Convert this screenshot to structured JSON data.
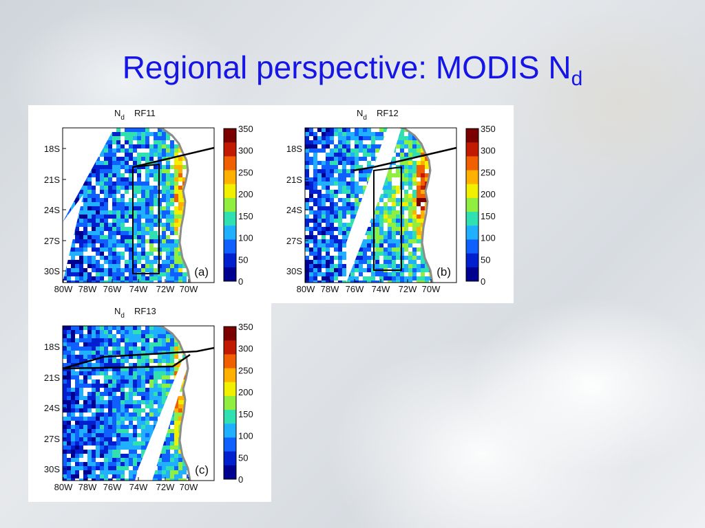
{
  "slide": {
    "title": "Regional perspective: MODIS N",
    "title_subscript": "d"
  },
  "colorbar": {
    "ticks": [
      "350",
      "300",
      "250",
      "200",
      "150",
      "100",
      "50",
      "0"
    ],
    "colors": [
      "#7a0000",
      "#c21a00",
      "#f06000",
      "#ffb000",
      "#f2f000",
      "#90ee40",
      "#30e0b0",
      "#20b0ff",
      "#1060ff",
      "#0020d0",
      "#000090"
    ]
  },
  "axes": {
    "lat_ticks": [
      "18S",
      "21S",
      "24S",
      "27S",
      "30S"
    ],
    "lon_ticks": [
      "80W",
      "78W",
      "76W",
      "74W",
      "72W",
      "70W"
    ]
  },
  "panels": [
    {
      "id": "a",
      "var": "N",
      "var_sub": "d",
      "flight": "RF11",
      "label": "(a)"
    },
    {
      "id": "b",
      "var": "N",
      "var_sub": "d",
      "flight": "RF12",
      "label": "(b)"
    },
    {
      "id": "c",
      "var": "N",
      "var_sub": "d",
      "flight": "RF13",
      "label": "(c)"
    }
  ]
}
